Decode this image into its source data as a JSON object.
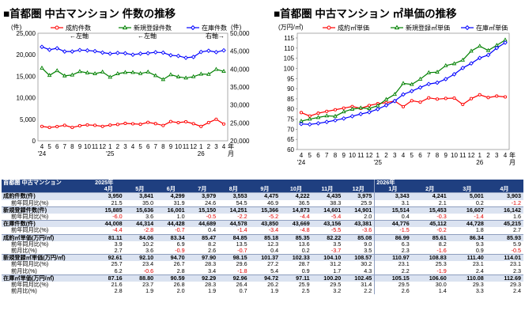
{
  "left_chart": {
    "title": "■首都圏 中古マンション 件数の推移",
    "y_left_unit": "(件)",
    "y_left_ticks": [
      "0",
      "5,000",
      "10,000",
      "15,000",
      "20,000",
      "25,000"
    ],
    "y_right_unit": "(件)",
    "y_right_ticks": [
      "20,000",
      "25,000",
      "30,000",
      "35,000",
      "40,000",
      "45,000",
      "50,000"
    ],
    "x_month_labels": [
      "4",
      "5",
      "6",
      "7",
      "8",
      "9",
      "10",
      "11",
      "12",
      "1",
      "2",
      "3",
      "4",
      "5",
      "6",
      "7",
      "8",
      "9",
      "10",
      "11",
      "12",
      "1",
      "2",
      "3",
      "4"
    ],
    "x_year_labels": [
      "'24",
      "'25",
      "26"
    ],
    "x_unit": "年\n月",
    "legend_notes": [
      "←左軸",
      "←左軸",
      "右軸→"
    ]
  },
  "right_chart": {
    "title": "■首都圏 中古マンション ㎡単価の推移",
    "y_unit": "(万円/㎡)",
    "y_ticks": [
      "60",
      "65",
      "70",
      "75",
      "80",
      "85",
      "90",
      "95",
      "100",
      "105",
      "110",
      "115"
    ],
    "x_month_labels": [
      "4",
      "5",
      "6",
      "7",
      "8",
      "9",
      "10",
      "11",
      "12",
      "1",
      "2",
      "3",
      "4",
      "5",
      "6",
      "7",
      "8",
      "9",
      "10",
      "11",
      "12",
      "1",
      "2",
      "3",
      "4"
    ],
    "x_year_labels": [
      "'24",
      "'25",
      "26"
    ],
    "x_unit": "年\n月"
  },
  "chart_data": [
    {
      "type": "line",
      "title": "■首都圏 中古マンション 件数の推移",
      "x": [
        "2024-04",
        "2024-05",
        "2024-06",
        "2024-07",
        "2024-08",
        "2024-09",
        "2024-10",
        "2024-11",
        "2024-12",
        "2025-01",
        "2025-02",
        "2025-03",
        "2025-04",
        "2025-05",
        "2025-06",
        "2025-07",
        "2025-08",
        "2025-09",
        "2025-10",
        "2025-11",
        "2025-12",
        "2026-01",
        "2026-02",
        "2026-03",
        "2026-04"
      ],
      "ylim_left": [
        0,
        25000
      ],
      "ylim_right": [
        20000,
        50000
      ],
      "series": [
        {
          "name": "成約件数",
          "axis": "left",
          "color": "#ff0000",
          "values": [
            3350,
            3100,
            3300,
            3600,
            3100,
            3500,
            3700,
            3600,
            3350,
            3650,
            3800,
            4050,
            3950,
            3841,
            4299,
            3979,
            3553,
            4475,
            4222,
            4435,
            3975,
            3343,
            4241,
            5001,
            3903
          ]
        },
        {
          "name": "新規登録件数",
          "axis": "left",
          "color": "#008000",
          "values": [
            16900,
            15200,
            16300,
            15100,
            15300,
            16100,
            15800,
            15600,
            16000,
            14800,
            15600,
            15900,
            15885,
            15636,
            16001,
            15150,
            14251,
            15366,
            14873,
            14601,
            14901,
            15514,
            15453,
            16607,
            16142
          ]
        },
        {
          "name": "在庫件数",
          "axis": "right",
          "color": "#0000ff",
          "values": [
            46200,
            45400,
            45800,
            44900,
            44900,
            45300,
            45200,
            45000,
            44600,
            44300,
            44500,
            44400,
            44008,
            44314,
            44428,
            44689,
            44578,
            43850,
            43669,
            43156,
            43381,
            44776,
            45112,
            44728,
            45215
          ]
        }
      ]
    },
    {
      "type": "line",
      "title": "■首都圏 中古マンション ㎡単価の推移",
      "x": [
        "2024-04",
        "2024-05",
        "2024-06",
        "2024-07",
        "2024-08",
        "2024-09",
        "2024-10",
        "2024-11",
        "2024-12",
        "2025-01",
        "2025-02",
        "2025-03",
        "2025-04",
        "2025-05",
        "2025-06",
        "2025-07",
        "2025-08",
        "2025-09",
        "2025-10",
        "2025-11",
        "2025-12",
        "2026-01",
        "2026-02",
        "2026-03",
        "2026-04"
      ],
      "ylim": [
        60,
        117
      ],
      "series": [
        {
          "name": "成約㎡単価",
          "color": "#ff0000",
          "values": [
            78.2,
            76.5,
            77.9,
            78.8,
            79.6,
            80.4,
            81.2,
            80.3,
            81.7,
            82.6,
            83.1,
            83.9,
            81.11,
            84.06,
            83.34,
            85.47,
            84.85,
            85.18,
            85.35,
            82.22,
            85.08,
            86.99,
            85.61,
            86.34,
            85.93
          ]
        },
        {
          "name": "新規登録㎡単価",
          "color": "#008000",
          "values": [
            74.0,
            75.0,
            75.8,
            76.6,
            76.4,
            78.6,
            79.9,
            80.5,
            80.2,
            81.6,
            84.7,
            87.2,
            92.61,
            92.1,
            94.7,
            97.9,
            98.15,
            101.37,
            102.33,
            104.1,
            108.57,
            110.97,
            108.83,
            111.4,
            114.01
          ]
        },
        {
          "name": "在庫㎡単価",
          "color": "#0000ff",
          "values": [
            72.6,
            72.4,
            72.9,
            73.6,
            74.4,
            75.3,
            76.4,
            77.5,
            78.4,
            79.9,
            81.8,
            83.9,
            87.16,
            88.8,
            90.59,
            92.29,
            92.96,
            94.72,
            97.11,
            100.2,
            102.45,
            105.15,
            106.6,
            110.08,
            112.69
          ]
        }
      ]
    },
    {
      "type": "table",
      "title": "首都圏 中古マンション",
      "year_headers": [
        "2025年",
        "2026年"
      ],
      "columns": [
        "4月",
        "5月",
        "6月",
        "7月",
        "8月",
        "9月",
        "10月",
        "11月",
        "12月",
        "1月",
        "2月",
        "3月",
        "4月"
      ],
      "rows": [
        {
          "label": "成約件数(件)",
          "values": [
            "3,950",
            "3,841",
            "4,299",
            "3,979",
            "3,553",
            "4,475",
            "4,222",
            "4,435",
            "3,975",
            "3,343",
            "4,241",
            "5,001",
            "3,903"
          ]
        },
        {
          "label": "前年同月比(%)",
          "values": [
            "21.5",
            "35.0",
            "31.9",
            "24.6",
            "54.5",
            "46.9",
            "36.5",
            "38.3",
            "25.9",
            "3.1",
            "2.1",
            "0.2",
            "-1.2"
          ]
        },
        {
          "label": "新規登録件数(件)",
          "values": [
            "15,885",
            "15,636",
            "16,001",
            "15,150",
            "14,251",
            "15,366",
            "14,873",
            "14,601",
            "14,901",
            "15,514",
            "15,453",
            "16,607",
            "16,142"
          ]
        },
        {
          "label": "前年同月比(%)",
          "values": [
            "-6.0",
            "3.6",
            "1.0",
            "-0.5",
            "-2.2",
            "-5.2",
            "-4.4",
            "-5.4",
            "2.0",
            "0.4",
            "-0.3",
            "-1.4",
            "1.6"
          ]
        },
        {
          "label": "在庫件数(件)",
          "values": [
            "44,008",
            "44,314",
            "44,428",
            "44,689",
            "44,578",
            "43,850",
            "43,669",
            "43,156",
            "43,381",
            "44,776",
            "45,112",
            "44,728",
            "45,215"
          ]
        },
        {
          "label": "前年同月比(%)",
          "values": [
            "-4.4",
            "-2.8",
            "-0.7",
            "0.4",
            "-1.4",
            "-3.4",
            "-4.8",
            "-5.5",
            "-3.6",
            "-1.5",
            "-0.2",
            "1.8",
            "2.7"
          ]
        },
        {
          "label": "成約㎡単価(万円/㎡)",
          "values": [
            "81.11",
            "84.06",
            "83.34",
            "85.47",
            "84.85",
            "85.18",
            "85.35",
            "82.22",
            "85.08",
            "86.99",
            "85.61",
            "86.34",
            "85.93"
          ]
        },
        {
          "label": "前年同月比(%)",
          "values": [
            "3.9",
            "10.2",
            "6.9",
            "8.2",
            "13.5",
            "12.3",
            "13.6",
            "3.5",
            "9.0",
            "6.3",
            "8.2",
            "9.3",
            "5.9"
          ]
        },
        {
          "label": "前月比(%)",
          "values": [
            "2.7",
            "3.6",
            "-0.9",
            "2.6",
            "-0.7",
            "0.4",
            "0.2",
            "-3.7",
            "3.5",
            "2.3",
            "-1.6",
            "0.9",
            "-0.5"
          ]
        },
        {
          "label": "新規登録㎡単価(万円/㎡)",
          "values": [
            "92.61",
            "92.10",
            "94.70",
            "97.90",
            "98.15",
            "101.37",
            "102.33",
            "104.10",
            "108.57",
            "110.97",
            "108.83",
            "111.40",
            "114.01"
          ]
        },
        {
          "label": "前年同月比(%)",
          "values": [
            "25.7",
            "23.4",
            "26.7",
            "28.3",
            "29.6",
            "27.2",
            "28.7",
            "31.2",
            "30.2",
            "23.1",
            "25.3",
            "23.1",
            "23.1"
          ]
        },
        {
          "label": "前月比(%)",
          "values": [
            "6.2",
            "-0.6",
            "2.8",
            "3.4",
            "-1.8",
            "5.4",
            "0.9",
            "1.7",
            "4.3",
            "2.2",
            "-1.9",
            "2.4",
            "2.3"
          ]
        },
        {
          "label": "在庫㎡単価(万円/㎡)",
          "values": [
            "87.16",
            "88.80",
            "90.59",
            "92.29",
            "92.96",
            "94.72",
            "97.11",
            "100.20",
            "102.45",
            "105.15",
            "106.60",
            "110.08",
            "112.69"
          ]
        },
        {
          "label": "前年同月比(%)",
          "values": [
            "21.6",
            "23.7",
            "26.8",
            "28.3",
            "26.4",
            "26.2",
            "25.9",
            "29.5",
            "31.4",
            "29.5",
            "30.0",
            "29.3",
            "29.3"
          ]
        },
        {
          "label": "前月比(%)",
          "values": [
            "2.8",
            "1.9",
            "2.0",
            "1.9",
            "0.7",
            "1.9",
            "2.5",
            "3.2",
            "2.2",
            "2.6",
            "1.4",
            "3.3",
            "2.4"
          ]
        }
      ]
    }
  ]
}
